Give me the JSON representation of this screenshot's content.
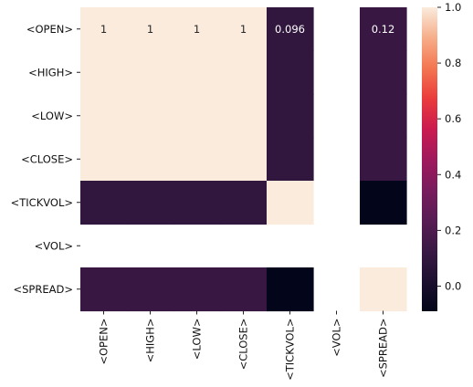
{
  "chart_data": {
    "type": "heatmap",
    "title": "",
    "xlabel": "",
    "ylabel": "",
    "rows": [
      "<OPEN>",
      "<HIGH>",
      "<LOW>",
      "<CLOSE>",
      "<TICKVOL>",
      "<VOL>",
      "<SPREAD>"
    ],
    "columns": [
      "<OPEN>",
      "<HIGH>",
      "<LOW>",
      "<CLOSE>",
      "<TICKVOL>",
      "<VOL>",
      "<SPREAD>"
    ],
    "values": [
      [
        1,
        1,
        1,
        1,
        0.096,
        null,
        0.12
      ],
      [
        1,
        1,
        1,
        1,
        0.096,
        null,
        0.12
      ],
      [
        1,
        1,
        1,
        1,
        0.096,
        null,
        0.12
      ],
      [
        1,
        1,
        1,
        1,
        0.096,
        null,
        0.12
      ],
      [
        0.096,
        0.096,
        0.096,
        0.096,
        1,
        null,
        -0.09
      ],
      [
        null,
        null,
        null,
        null,
        null,
        null,
        null
      ],
      [
        0.12,
        0.12,
        0.12,
        0.12,
        -0.09,
        null,
        1
      ]
    ],
    "annotations": [
      {
        "row": 0,
        "col": 0,
        "text": "1"
      },
      {
        "row": 0,
        "col": 1,
        "text": "1"
      },
      {
        "row": 0,
        "col": 2,
        "text": "1"
      },
      {
        "row": 0,
        "col": 3,
        "text": "1"
      },
      {
        "row": 0,
        "col": 4,
        "text": "0.096"
      },
      {
        "row": 0,
        "col": 6,
        "text": "0.12"
      }
    ],
    "colorbar": {
      "min": -0.09,
      "max": 1.0,
      "ticks": [
        0.0,
        0.2,
        0.4,
        0.6,
        0.8,
        1.0
      ],
      "tick_labels": [
        "0.0",
        "0.2",
        "0.4",
        "0.6",
        "0.8",
        "1.0"
      ],
      "colormap": "rocket",
      "placement": "right"
    }
  }
}
